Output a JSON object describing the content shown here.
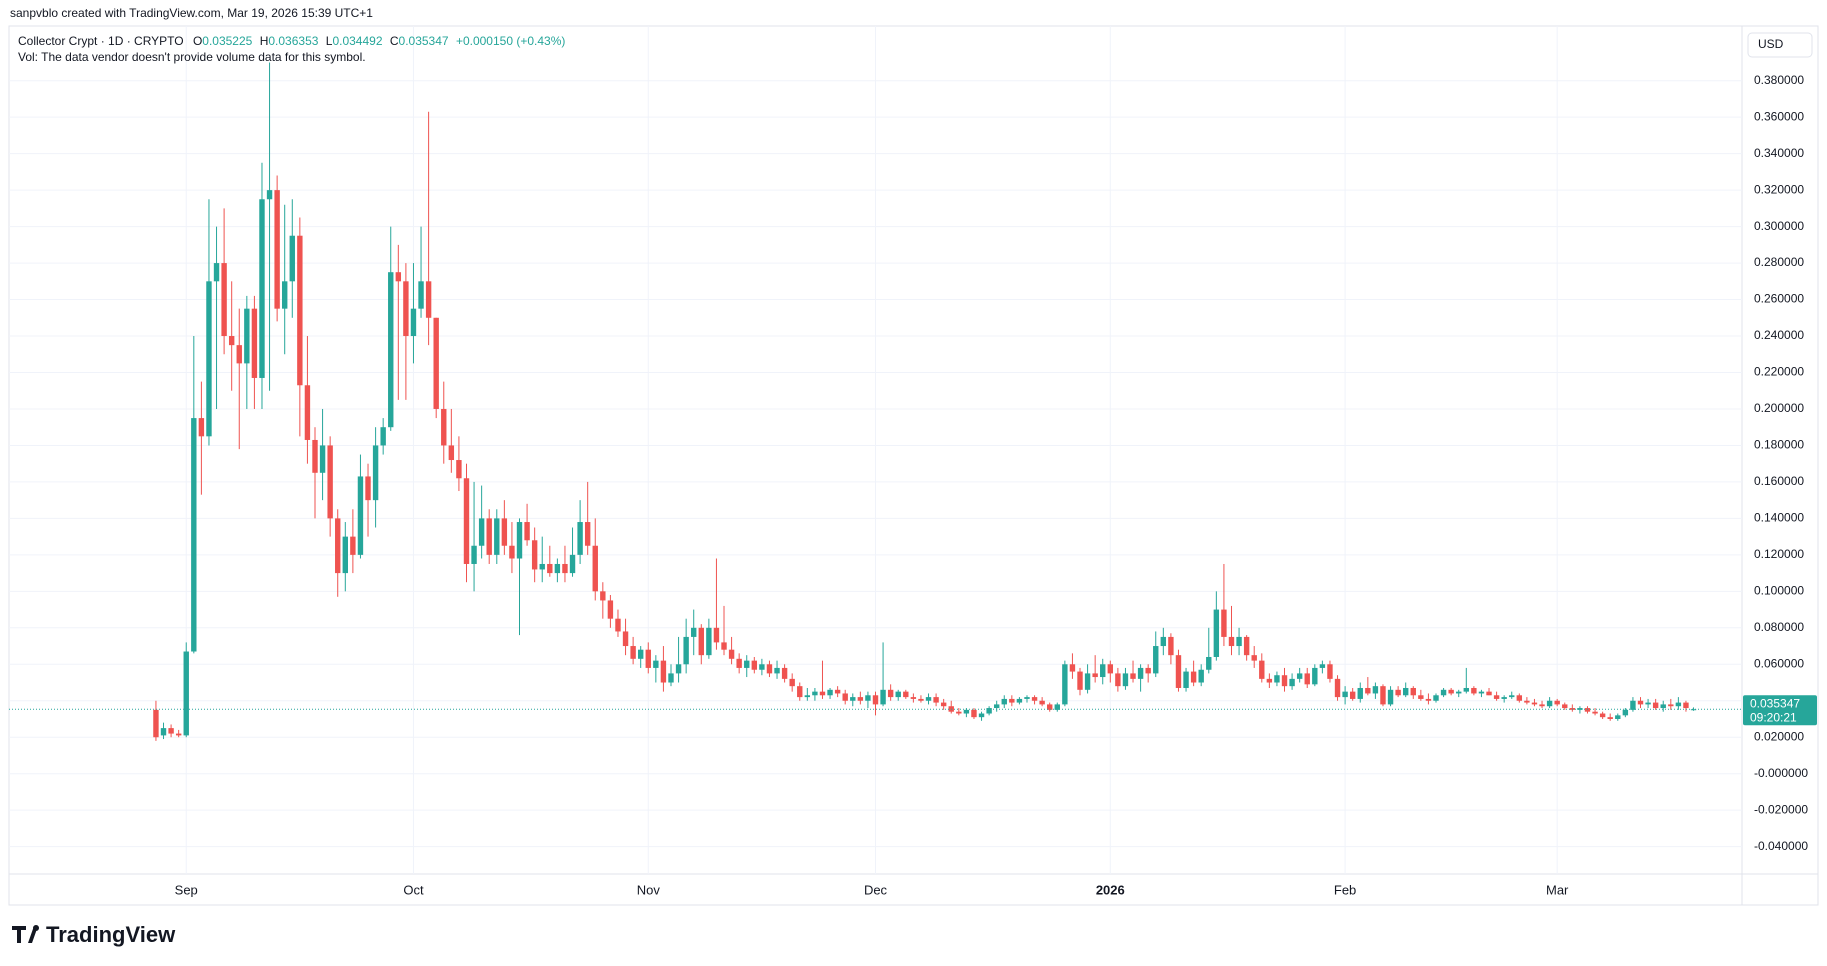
{
  "header": {
    "attribution": "sanpvblo created with TradingView.com, Mar 19, 2026 15:39 UTC+1",
    "symbol": "Collector Crypt · 1D · CRYPTO",
    "change": "+0.000150 (+0.43%)",
    "volume_note": "Vol: The data vendor doesn't provide volume data for this symbol.",
    "brand": "TradingView"
  },
  "chart_data": {
    "type": "candlestick",
    "currency": "USD",
    "countdown": "09:20:21",
    "legend_letters": [
      "O",
      "H",
      "L",
      "C"
    ],
    "up_color": "#26a69a",
    "down_color": "#ef5350",
    "grid": true,
    "ylim": [
      -0.055,
      0.41
    ],
    "yticks": [
      {
        "value": -0.04,
        "label": "-0.040000"
      },
      {
        "value": -0.02,
        "label": "-0.020000"
      },
      {
        "value": 0,
        "label": "-0.000000"
      },
      {
        "value": 0.02,
        "label": "0.020000"
      },
      {
        "value": 0.04,
        "label": "0.040000"
      },
      {
        "value": 0.06,
        "label": "0.060000"
      },
      {
        "value": 0.08,
        "label": "0.080000"
      },
      {
        "value": 0.1,
        "label": "0.100000"
      },
      {
        "value": 0.12,
        "label": "0.120000"
      },
      {
        "value": 0.14,
        "label": "0.140000"
      },
      {
        "value": 0.16,
        "label": "0.160000"
      },
      {
        "value": 0.18,
        "label": "0.180000"
      },
      {
        "value": 0.2,
        "label": "0.200000"
      },
      {
        "value": 0.22,
        "label": "0.220000"
      },
      {
        "value": 0.24,
        "label": "0.240000"
      },
      {
        "value": 0.26,
        "label": "0.260000"
      },
      {
        "value": 0.28,
        "label": "0.280000"
      },
      {
        "value": 0.3,
        "label": "0.300000"
      },
      {
        "value": 0.32,
        "label": "0.320000"
      },
      {
        "value": 0.34,
        "label": "0.340000"
      },
      {
        "value": 0.36,
        "label": "0.360000"
      },
      {
        "value": 0.38,
        "label": "0.380000"
      }
    ],
    "xlim": [
      -19.4,
      209.4
    ],
    "xticks": [
      {
        "value": 4,
        "label": "Sep"
      },
      {
        "value": 34,
        "label": "Oct"
      },
      {
        "value": 65,
        "label": "Nov"
      },
      {
        "value": 95,
        "label": "Dec"
      },
      {
        "value": 126,
        "label": "2026"
      },
      {
        "value": 157,
        "label": "Feb"
      },
      {
        "value": 185,
        "label": "Mar"
      }
    ],
    "ohlc": [
      [
        0.035,
        0.04,
        0.018,
        0.02
      ],
      [
        0.021,
        0.028,
        0.019,
        0.025
      ],
      [
        0.025,
        0.027,
        0.02,
        0.022
      ],
      [
        0.022,
        0.024,
        0.02,
        0.021
      ],
      [
        0.021,
        0.072,
        0.02,
        0.067
      ],
      [
        0.067,
        0.24,
        0.066,
        0.195
      ],
      [
        0.195,
        0.215,
        0.153,
        0.185
      ],
      [
        0.185,
        0.315,
        0.18,
        0.27
      ],
      [
        0.27,
        0.3,
        0.2,
        0.28
      ],
      [
        0.28,
        0.31,
        0.23,
        0.24
      ],
      [
        0.24,
        0.27,
        0.21,
        0.235
      ],
      [
        0.235,
        0.255,
        0.178,
        0.225
      ],
      [
        0.225,
        0.262,
        0.2,
        0.255
      ],
      [
        0.255,
        0.262,
        0.2,
        0.217
      ],
      [
        0.217,
        0.335,
        0.2,
        0.315
      ],
      [
        0.315,
        0.39,
        0.21,
        0.32
      ],
      [
        0.32,
        0.328,
        0.248,
        0.255
      ],
      [
        0.255,
        0.312,
        0.23,
        0.27
      ],
      [
        0.27,
        0.315,
        0.25,
        0.295
      ],
      [
        0.295,
        0.305,
        0.185,
        0.213
      ],
      [
        0.213,
        0.24,
        0.17,
        0.183
      ],
      [
        0.183,
        0.19,
        0.14,
        0.165
      ],
      [
        0.165,
        0.2,
        0.15,
        0.18
      ],
      [
        0.18,
        0.185,
        0.13,
        0.14
      ],
      [
        0.14,
        0.145,
        0.097,
        0.11
      ],
      [
        0.11,
        0.138,
        0.1,
        0.13
      ],
      [
        0.13,
        0.145,
        0.11,
        0.12
      ],
      [
        0.12,
        0.175,
        0.118,
        0.163
      ],
      [
        0.163,
        0.17,
        0.13,
        0.15
      ],
      [
        0.15,
        0.19,
        0.135,
        0.18
      ],
      [
        0.18,
        0.195,
        0.175,
        0.19
      ],
      [
        0.19,
        0.3,
        0.188,
        0.275
      ],
      [
        0.275,
        0.29,
        0.205,
        0.27
      ],
      [
        0.27,
        0.28,
        0.205,
        0.24
      ],
      [
        0.24,
        0.28,
        0.225,
        0.255
      ],
      [
        0.255,
        0.3,
        0.25,
        0.27
      ],
      [
        0.27,
        0.363,
        0.235,
        0.25
      ],
      [
        0.25,
        0.25,
        0.195,
        0.2
      ],
      [
        0.2,
        0.215,
        0.17,
        0.18
      ],
      [
        0.18,
        0.2,
        0.165,
        0.172
      ],
      [
        0.172,
        0.185,
        0.155,
        0.162
      ],
      [
        0.162,
        0.17,
        0.105,
        0.115
      ],
      [
        0.115,
        0.16,
        0.1,
        0.125
      ],
      [
        0.125,
        0.158,
        0.118,
        0.14
      ],
      [
        0.14,
        0.145,
        0.115,
        0.12
      ],
      [
        0.12,
        0.145,
        0.115,
        0.14
      ],
      [
        0.14,
        0.15,
        0.12,
        0.125
      ],
      [
        0.125,
        0.138,
        0.11,
        0.118
      ],
      [
        0.118,
        0.14,
        0.076,
        0.138
      ],
      [
        0.138,
        0.148,
        0.125,
        0.128
      ],
      [
        0.128,
        0.135,
        0.105,
        0.112
      ],
      [
        0.112,
        0.13,
        0.105,
        0.115
      ],
      [
        0.115,
        0.125,
        0.108,
        0.11
      ],
      [
        0.11,
        0.118,
        0.105,
        0.115
      ],
      [
        0.115,
        0.125,
        0.105,
        0.11
      ],
      [
        0.11,
        0.135,
        0.108,
        0.12
      ],
      [
        0.12,
        0.15,
        0.115,
        0.138
      ],
      [
        0.138,
        0.16,
        0.12,
        0.125
      ],
      [
        0.125,
        0.14,
        0.095,
        0.1
      ],
      [
        0.1,
        0.105,
        0.085,
        0.095
      ],
      [
        0.095,
        0.098,
        0.08,
        0.085
      ],
      [
        0.085,
        0.09,
        0.075,
        0.078
      ],
      [
        0.078,
        0.085,
        0.065,
        0.07
      ],
      [
        0.07,
        0.075,
        0.06,
        0.063
      ],
      [
        0.063,
        0.07,
        0.058,
        0.068
      ],
      [
        0.068,
        0.072,
        0.055,
        0.058
      ],
      [
        0.058,
        0.065,
        0.05,
        0.062
      ],
      [
        0.062,
        0.07,
        0.045,
        0.05
      ],
      [
        0.05,
        0.06,
        0.048,
        0.055
      ],
      [
        0.055,
        0.075,
        0.05,
        0.06
      ],
      [
        0.06,
        0.085,
        0.055,
        0.075
      ],
      [
        0.075,
        0.09,
        0.065,
        0.08
      ],
      [
        0.08,
        0.082,
        0.06,
        0.065
      ],
      [
        0.065,
        0.085,
        0.063,
        0.08
      ],
      [
        0.08,
        0.118,
        0.068,
        0.072
      ],
      [
        0.072,
        0.092,
        0.065,
        0.068
      ],
      [
        0.068,
        0.075,
        0.06,
        0.063
      ],
      [
        0.063,
        0.066,
        0.055,
        0.058
      ],
      [
        0.058,
        0.065,
        0.053,
        0.062
      ],
      [
        0.062,
        0.064,
        0.055,
        0.057
      ],
      [
        0.057,
        0.063,
        0.054,
        0.06
      ],
      [
        0.06,
        0.062,
        0.053,
        0.055
      ],
      [
        0.055,
        0.062,
        0.052,
        0.058
      ],
      [
        0.058,
        0.06,
        0.05,
        0.052
      ],
      [
        0.052,
        0.055,
        0.045,
        0.048
      ],
      [
        0.048,
        0.05,
        0.04,
        0.042
      ],
      [
        0.042,
        0.047,
        0.04,
        0.043
      ],
      [
        0.043,
        0.047,
        0.04,
        0.045
      ],
      [
        0.045,
        0.062,
        0.041,
        0.043
      ],
      [
        0.043,
        0.047,
        0.041,
        0.046
      ],
      [
        0.046,
        0.048,
        0.042,
        0.044
      ],
      [
        0.044,
        0.046,
        0.038,
        0.04
      ],
      [
        0.04,
        0.044,
        0.037,
        0.042
      ],
      [
        0.042,
        0.045,
        0.038,
        0.04
      ],
      [
        0.04,
        0.045,
        0.036,
        0.043
      ],
      [
        0.043,
        0.045,
        0.032,
        0.038
      ],
      [
        0.038,
        0.072,
        0.037,
        0.046
      ],
      [
        0.046,
        0.049,
        0.04,
        0.042
      ],
      [
        0.042,
        0.046,
        0.04,
        0.045
      ],
      [
        0.045,
        0.046,
        0.041,
        0.042
      ],
      [
        0.042,
        0.044,
        0.039,
        0.041
      ],
      [
        0.041,
        0.043,
        0.039,
        0.04
      ],
      [
        0.04,
        0.044,
        0.038,
        0.042
      ],
      [
        0.042,
        0.044,
        0.037,
        0.039
      ],
      [
        0.039,
        0.041,
        0.035,
        0.037
      ],
      [
        0.037,
        0.04,
        0.033,
        0.034
      ],
      [
        0.034,
        0.036,
        0.032,
        0.033
      ],
      [
        0.033,
        0.036,
        0.031,
        0.035
      ],
      [
        0.035,
        0.036,
        0.03,
        0.031
      ],
      [
        0.031,
        0.034,
        0.029,
        0.033
      ],
      [
        0.033,
        0.037,
        0.032,
        0.036
      ],
      [
        0.036,
        0.04,
        0.034,
        0.038
      ],
      [
        0.038,
        0.043,
        0.036,
        0.041
      ],
      [
        0.041,
        0.043,
        0.037,
        0.039
      ],
      [
        0.039,
        0.042,
        0.038,
        0.041
      ],
      [
        0.041,
        0.043,
        0.039,
        0.042
      ],
      [
        0.042,
        0.043,
        0.038,
        0.04
      ],
      [
        0.04,
        0.042,
        0.037,
        0.038
      ],
      [
        0.038,
        0.039,
        0.034,
        0.035
      ],
      [
        0.035,
        0.039,
        0.034,
        0.038
      ],
      [
        0.038,
        0.062,
        0.037,
        0.06
      ],
      [
        0.06,
        0.066,
        0.052,
        0.056
      ],
      [
        0.056,
        0.058,
        0.043,
        0.046
      ],
      [
        0.046,
        0.06,
        0.044,
        0.055
      ],
      [
        0.055,
        0.065,
        0.05,
        0.053
      ],
      [
        0.053,
        0.063,
        0.049,
        0.06
      ],
      [
        0.06,
        0.062,
        0.05,
        0.055
      ],
      [
        0.055,
        0.058,
        0.045,
        0.048
      ],
      [
        0.048,
        0.058,
        0.046,
        0.055
      ],
      [
        0.055,
        0.062,
        0.05,
        0.052
      ],
      [
        0.052,
        0.06,
        0.045,
        0.058
      ],
      [
        0.058,
        0.06,
        0.05,
        0.055
      ],
      [
        0.055,
        0.078,
        0.053,
        0.07
      ],
      [
        0.07,
        0.08,
        0.065,
        0.075
      ],
      [
        0.075,
        0.077,
        0.06,
        0.065
      ],
      [
        0.065,
        0.068,
        0.045,
        0.047
      ],
      [
        0.047,
        0.058,
        0.045,
        0.056
      ],
      [
        0.056,
        0.062,
        0.048,
        0.05
      ],
      [
        0.05,
        0.06,
        0.048,
        0.057
      ],
      [
        0.057,
        0.08,
        0.055,
        0.064
      ],
      [
        0.064,
        0.1,
        0.062,
        0.09
      ],
      [
        0.09,
        0.115,
        0.07,
        0.075
      ],
      [
        0.075,
        0.092,
        0.065,
        0.07
      ],
      [
        0.07,
        0.08,
        0.065,
        0.075
      ],
      [
        0.075,
        0.076,
        0.062,
        0.065
      ],
      [
        0.065,
        0.07,
        0.058,
        0.062
      ],
      [
        0.062,
        0.066,
        0.05,
        0.052
      ],
      [
        0.052,
        0.055,
        0.047,
        0.05
      ],
      [
        0.05,
        0.056,
        0.048,
        0.054
      ],
      [
        0.054,
        0.058,
        0.045,
        0.048
      ],
      [
        0.048,
        0.055,
        0.046,
        0.052
      ],
      [
        0.052,
        0.058,
        0.05,
        0.055
      ],
      [
        0.055,
        0.058,
        0.047,
        0.049
      ],
      [
        0.049,
        0.06,
        0.048,
        0.058
      ],
      [
        0.058,
        0.062,
        0.055,
        0.06
      ],
      [
        0.06,
        0.062,
        0.05,
        0.052
      ],
      [
        0.052,
        0.054,
        0.04,
        0.042
      ],
      [
        0.042,
        0.048,
        0.038,
        0.045
      ],
      [
        0.045,
        0.047,
        0.04,
        0.041
      ],
      [
        0.041,
        0.05,
        0.039,
        0.047
      ],
      [
        0.047,
        0.053,
        0.043,
        0.044
      ],
      [
        0.044,
        0.05,
        0.041,
        0.048
      ],
      [
        0.048,
        0.049,
        0.037,
        0.038
      ],
      [
        0.038,
        0.048,
        0.037,
        0.046
      ],
      [
        0.046,
        0.048,
        0.042,
        0.043
      ],
      [
        0.043,
        0.05,
        0.042,
        0.047
      ],
      [
        0.047,
        0.048,
        0.041,
        0.043
      ],
      [
        0.043,
        0.046,
        0.04,
        0.041
      ],
      [
        0.041,
        0.044,
        0.038,
        0.04
      ],
      [
        0.04,
        0.044,
        0.039,
        0.043
      ],
      [
        0.043,
        0.047,
        0.042,
        0.046
      ],
      [
        0.046,
        0.047,
        0.043,
        0.044
      ],
      [
        0.044,
        0.046,
        0.042,
        0.045
      ],
      [
        0.045,
        0.058,
        0.044,
        0.047
      ],
      [
        0.047,
        0.048,
        0.043,
        0.044
      ],
      [
        0.044,
        0.046,
        0.042,
        0.045
      ],
      [
        0.045,
        0.047,
        0.043,
        0.043
      ],
      [
        0.043,
        0.045,
        0.04,
        0.041
      ],
      [
        0.041,
        0.043,
        0.039,
        0.042
      ],
      [
        0.042,
        0.045,
        0.041,
        0.043
      ],
      [
        0.043,
        0.044,
        0.039,
        0.04
      ],
      [
        0.04,
        0.042,
        0.038,
        0.039
      ],
      [
        0.039,
        0.041,
        0.037,
        0.038
      ],
      [
        0.038,
        0.04,
        0.036,
        0.037
      ],
      [
        0.037,
        0.042,
        0.036,
        0.04
      ],
      [
        0.04,
        0.041,
        0.037,
        0.038
      ],
      [
        0.038,
        0.039,
        0.035,
        0.036
      ],
      [
        0.036,
        0.038,
        0.034,
        0.035
      ],
      [
        0.035,
        0.037,
        0.033,
        0.036
      ],
      [
        0.036,
        0.037,
        0.033,
        0.034
      ],
      [
        0.034,
        0.036,
        0.032,
        0.033
      ],
      [
        0.033,
        0.034,
        0.03,
        0.031
      ],
      [
        0.031,
        0.033,
        0.029,
        0.03
      ],
      [
        0.03,
        0.033,
        0.029,
        0.032
      ],
      [
        0.032,
        0.036,
        0.031,
        0.035
      ],
      [
        0.035,
        0.042,
        0.034,
        0.04
      ],
      [
        0.04,
        0.042,
        0.036,
        0.038
      ],
      [
        0.038,
        0.041,
        0.036,
        0.039
      ],
      [
        0.039,
        0.041,
        0.035,
        0.036
      ],
      [
        0.036,
        0.04,
        0.034,
        0.038
      ],
      [
        0.038,
        0.041,
        0.035,
        0.037
      ],
      [
        0.037,
        0.042,
        0.035,
        0.039
      ],
      [
        0.039,
        0.04,
        0.034,
        0.036
      ],
      [
        0.035225,
        0.036353,
        0.034492,
        0.035347
      ]
    ]
  }
}
